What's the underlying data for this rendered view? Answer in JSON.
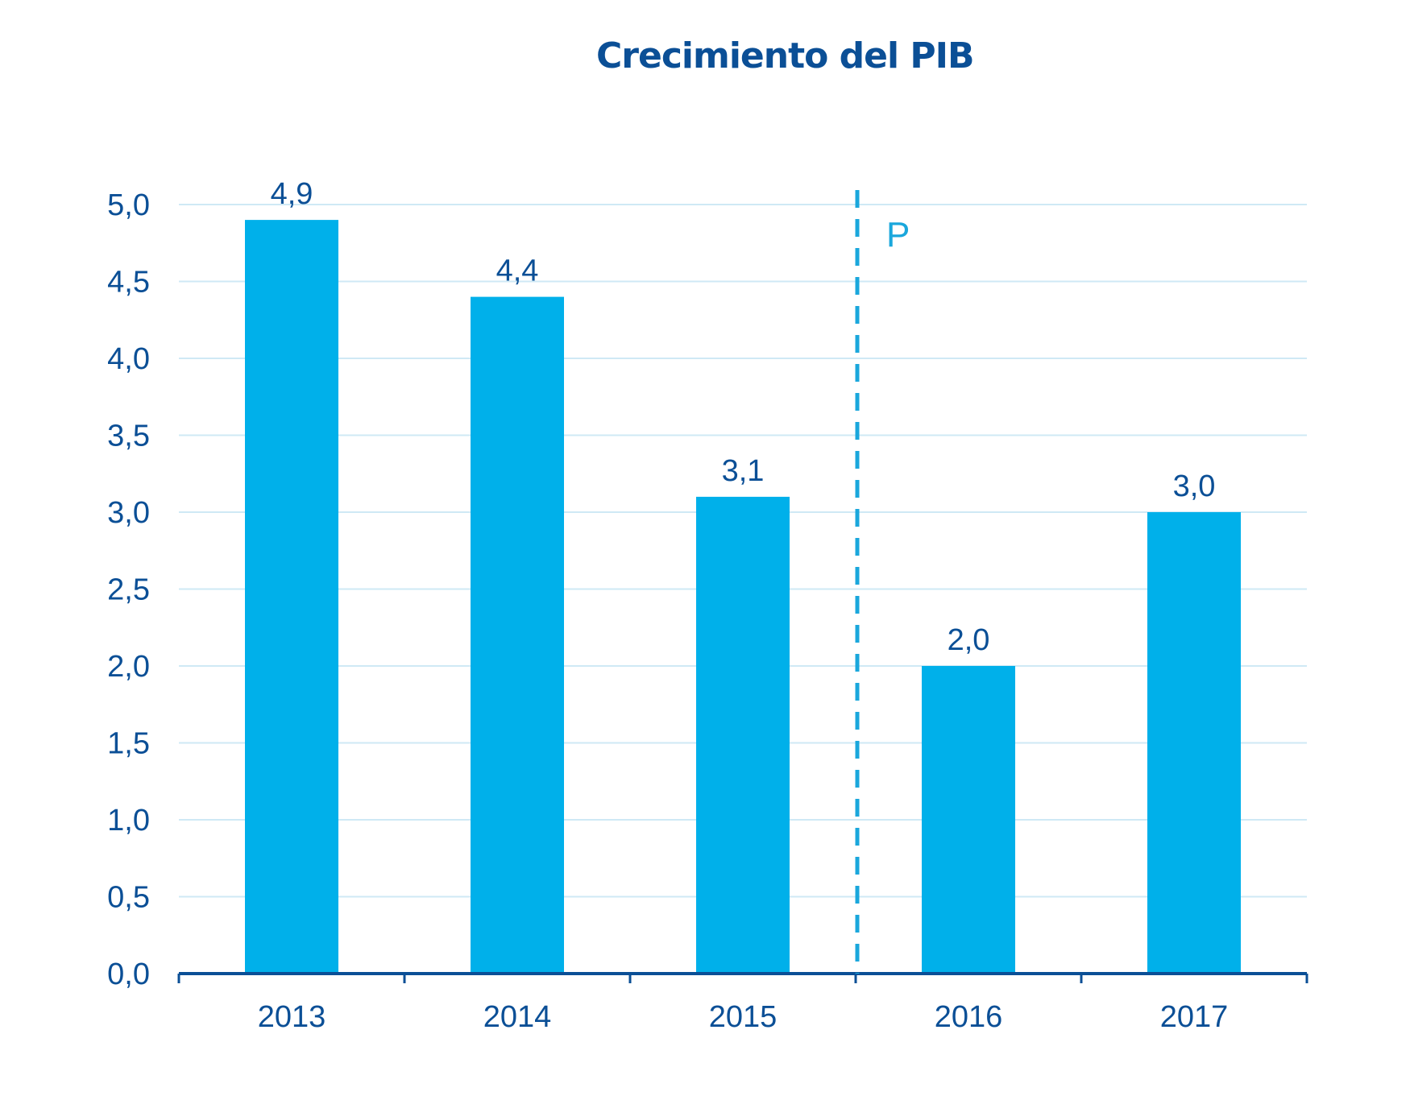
{
  "chart_data": {
    "type": "bar",
    "title": "Crecimiento del PIB",
    "categories": [
      "2013",
      "2014",
      "2015",
      "2016",
      "2017"
    ],
    "values": [
      4.9,
      4.4,
      3.1,
      2.0,
      3.0
    ],
    "value_labels": [
      "4,9",
      "4,4",
      "3,1",
      "2,0",
      "3,0"
    ],
    "ylim": [
      0,
      5
    ],
    "yticks": [
      0,
      0.5,
      1,
      1.5,
      2,
      2.5,
      3,
      3.5,
      4,
      4.5,
      5
    ],
    "ytick_labels": [
      "0,0",
      "0,5",
      "1,0",
      "1,5",
      "2,0",
      "2,5",
      "3,0",
      "3,5",
      "4,0",
      "4,5",
      "5,0"
    ],
    "xlabel": "",
    "ylabel": "",
    "grid": true,
    "marker": {
      "label": "P",
      "between": [
        "2015",
        "2016"
      ]
    },
    "colors": {
      "bar": "#00b0ea",
      "text": "#0b4f96",
      "grid": "#cfe9f5",
      "axis": "#0b4f96",
      "marker": "#1aa7dc"
    }
  }
}
